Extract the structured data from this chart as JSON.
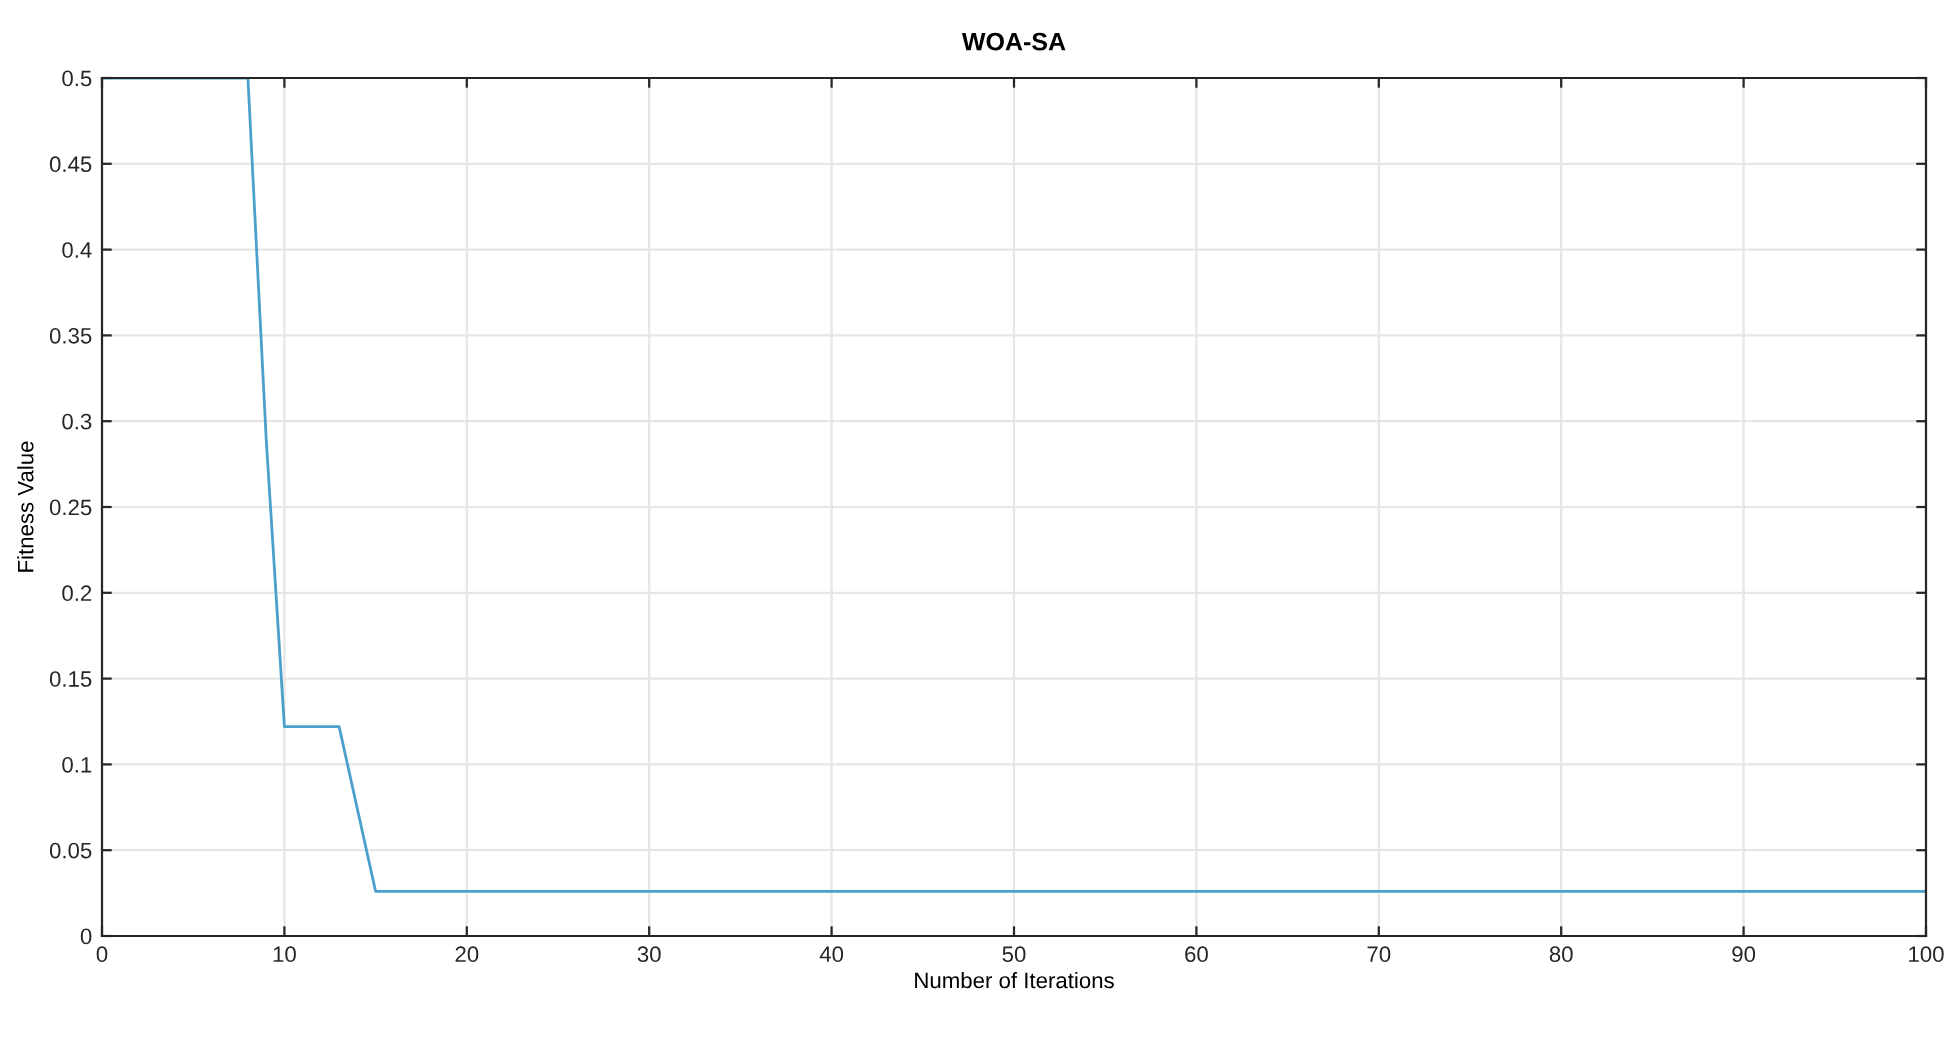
{
  "chart_data": {
    "type": "line",
    "title": "WOA-SA",
    "xlabel": "Number of Iterations",
    "ylabel": "Fitness Value",
    "x": [
      0,
      8,
      9,
      10,
      13,
      15,
      100
    ],
    "series": [
      {
        "color": "#4a9fcc",
        "values": [
          0.5,
          0.5,
          0.29,
          0.122,
          0.122,
          0.026,
          0.026
        ]
      }
    ],
    "xlim": [
      0,
      100
    ],
    "xticks": [
      0,
      10,
      20,
      30,
      40,
      50,
      60,
      70,
      80,
      90,
      100
    ],
    "ylim": [
      0,
      0.5
    ],
    "yticks": [
      0,
      0.05,
      0.1,
      0.15,
      0.2,
      0.25,
      0.3,
      0.35,
      0.4,
      0.45,
      0.5
    ],
    "grid": true,
    "marker": "none",
    "line_style": "solid"
  }
}
